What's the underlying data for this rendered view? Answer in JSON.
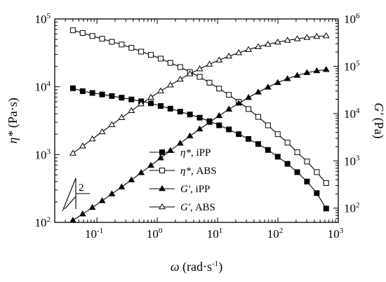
{
  "chart_data": {
    "type": "line",
    "x_scale": "log",
    "y_left_scale": "log",
    "y_right_scale": "log",
    "xlim": [
      0.02,
      1000
    ],
    "ylim_left": [
      100,
      100000
    ],
    "ylim_right": [
      50,
      1000000
    ],
    "x_ticks": [
      {
        "base": "10",
        "exp": "-1"
      },
      {
        "base": "10",
        "exp": "0"
      },
      {
        "base": "10",
        "exp": "1"
      },
      {
        "base": "10",
        "exp": "2"
      },
      {
        "base": "10",
        "exp": "3"
      }
    ],
    "x_tick_values": [
      0.1,
      1,
      10,
      100,
      1000
    ],
    "y_left_ticks": [
      {
        "base": "10",
        "exp": "2"
      },
      {
        "base": "10",
        "exp": "3"
      },
      {
        "base": "10",
        "exp": "4"
      },
      {
        "base": "10",
        "exp": "5"
      }
    ],
    "y_left_tick_values": [
      100,
      1000,
      10000,
      100000
    ],
    "y_right_ticks": [
      {
        "base": "10",
        "exp": "2"
      },
      {
        "base": "10",
        "exp": "3"
      },
      {
        "base": "10",
        "exp": "4"
      },
      {
        "base": "10",
        "exp": "5"
      },
      {
        "base": "10",
        "exp": "6"
      }
    ],
    "y_right_tick_values": [
      100,
      1000,
      10000,
      100000,
      1000000
    ],
    "xlabel": {
      "symbol": "ω",
      "unit": " (rad·s",
      "sup": "-1",
      "close": ")"
    },
    "ylabel_left": {
      "symbol": "η*",
      "unit": " (Pa·s)"
    },
    "ylabel_right": {
      "symbol": "G'",
      "unit": " (Pa)"
    },
    "slope_label": "2",
    "x": [
      0.04,
      0.058,
      0.084,
      0.122,
      0.177,
      0.257,
      0.373,
      0.541,
      0.785,
      1.14,
      1.65,
      2.4,
      3.48,
      5.05,
      7.33,
      10.6,
      15.4,
      22.4,
      32.5,
      47.1,
      68.4,
      99.2,
      144,
      209,
      303,
      440,
      630
    ],
    "series": [
      {
        "name": "η*,  iPP",
        "marker": "square-filled",
        "axis": "left",
        "values": [
          9500,
          8600,
          8100,
          7700,
          7300,
          6900,
          6500,
          6100,
          5700,
          5200,
          4750,
          4300,
          3900,
          3500,
          3100,
          2700,
          2350,
          2000,
          1700,
          1430,
          1170,
          930,
          730,
          550,
          400,
          270,
          160
        ]
      },
      {
        "name": "η*,  ABS",
        "marker": "square-open",
        "axis": "left",
        "values": [
          68000,
          62000,
          56000,
          51000,
          46000,
          42000,
          37500,
          33000,
          29500,
          26000,
          22500,
          19500,
          16500,
          14000,
          11500,
          9400,
          7600,
          6000,
          4700,
          3600,
          2700,
          2000,
          1500,
          1080,
          790,
          550,
          380
        ]
      },
      {
        "name": "G',  iPP",
        "marker": "triangle-filled",
        "axis": "right",
        "values": [
          55,
          75,
          103,
          143,
          200,
          280,
          395,
          560,
          800,
          1150,
          1650,
          2350,
          3350,
          4700,
          6500,
          9000,
          12300,
          16500,
          21800,
          28300,
          36000,
          45000,
          54500,
          64000,
          73000,
          80000,
          85000
        ]
      },
      {
        "name": "G',  ABS",
        "marker": "triangle-open",
        "axis": "right",
        "values": [
          1450,
          2050,
          2900,
          4100,
          5800,
          8200,
          11500,
          16000,
          22000,
          30000,
          40000,
          53000,
          69000,
          88000,
          110000,
          135000,
          163000,
          193000,
          225000,
          258000,
          290000,
          323000,
          353000,
          380000,
          405000,
          425000,
          440000
        ]
      }
    ],
    "legend_position": "lower-middle",
    "grid": false
  }
}
